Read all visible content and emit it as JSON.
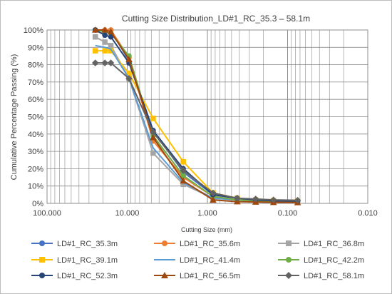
{
  "chart_data": {
    "type": "line",
    "title": "Cutting Size Distribution_LD#1_RC_35.3 – 58.1m",
    "xlabel": "Cutting Size (mm)",
    "ylabel": "Cumulative  Percentage  Passing (%)",
    "x_scale": "log",
    "x_reversed": true,
    "xlim": [
      100,
      0.01
    ],
    "ylim": [
      0,
      100
    ],
    "x_tick_labels": [
      "100.000",
      "10.000",
      "1.000",
      "0.100",
      "0.010"
    ],
    "x_tick_values": [
      100,
      10,
      1,
      0.1,
      0.01
    ],
    "y_tick_labels": [
      "0%",
      "10%",
      "20%",
      "30%",
      "40%",
      "50%",
      "60%",
      "70%",
      "80%",
      "90%",
      "100%"
    ],
    "y_tick_values": [
      0,
      10,
      20,
      30,
      40,
      50,
      60,
      70,
      80,
      90,
      100
    ],
    "grid": true,
    "legend_position": "bottom",
    "x": [
      25,
      19,
      16,
      9.5,
      4.75,
      2,
      0.85,
      0.425,
      0.25,
      0.15,
      0.075
    ],
    "series": [
      {
        "name": "LD#1_RC_35.3m",
        "color": "#4472C4",
        "marker": "circle",
        "values": [
          100,
          100,
          100,
          82,
          42,
          18,
          5,
          3,
          2,
          1.5,
          1.2
        ]
      },
      {
        "name": "LD#1_RC_35.6m",
        "color": "#ED7D31",
        "marker": "circle",
        "values": [
          100,
          100,
          100,
          84,
          36,
          15,
          4,
          2,
          1.5,
          1,
          0.8
        ]
      },
      {
        "name": "LD#1_RC_36.8m",
        "color": "#A5A5A5",
        "marker": "square",
        "values": [
          96,
          93,
          91,
          72,
          29,
          11,
          3,
          2,
          1,
          1,
          0.8
        ]
      },
      {
        "name": "LD#1_RC_39.1m",
        "color": "#FFC000",
        "marker": "square",
        "values": [
          88,
          88,
          88,
          75,
          49,
          24,
          6,
          3,
          2,
          1.5,
          1.2
        ]
      },
      {
        "name": "LD#1_RC_41.4m",
        "color": "#5B9BD5",
        "marker": "none",
        "values": [
          91,
          90,
          89,
          72,
          32,
          12,
          3,
          2,
          1.5,
          1,
          0.8
        ]
      },
      {
        "name": "LD#1_RC_42.2m",
        "color": "#70AD47",
        "marker": "circle",
        "values": [
          100,
          99,
          98,
          85,
          39,
          16,
          4,
          2,
          1.5,
          1,
          0.8
        ]
      },
      {
        "name": "LD#1_RC_52.3m",
        "color": "#264478",
        "marker": "circle",
        "values": [
          100,
          97,
          96,
          81,
          42,
          20,
          5,
          3,
          2,
          1.5,
          1.2
        ]
      },
      {
        "name": "LD#1_RC_56.5m",
        "color": "#9E480E",
        "marker": "triangle",
        "values": [
          100,
          100,
          99,
          83,
          38,
          13,
          2,
          1,
          0.8,
          0.6,
          0.5
        ]
      },
      {
        "name": "LD#1_RC_58.1m",
        "color": "#636363",
        "marker": "diamond",
        "values": [
          81,
          81,
          81,
          72,
          41,
          19,
          6,
          3,
          2.5,
          2,
          1.8
        ]
      }
    ]
  }
}
